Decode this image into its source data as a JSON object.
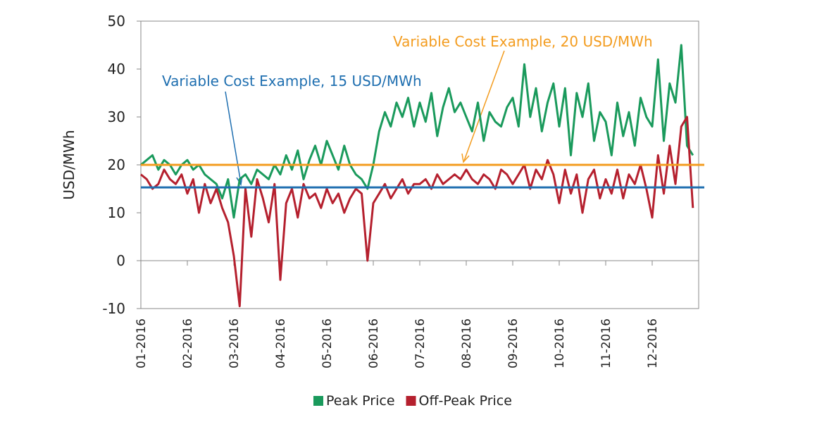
{
  "chart_data": {
    "type": "line",
    "y_label": "USD/MWh",
    "ylim": [
      -10,
      50
    ],
    "yticks": [
      -10,
      0,
      10,
      20,
      30,
      40,
      50
    ],
    "categories": [
      "01-2016",
      null,
      null,
      null,
      null,
      null,
      null,
      null,
      "02-2016",
      null,
      null,
      null,
      null,
      null,
      null,
      null,
      "03-2016",
      null,
      null,
      null,
      null,
      null,
      null,
      null,
      "04-2016",
      null,
      null,
      null,
      null,
      null,
      null,
      null,
      "05-2016",
      null,
      null,
      null,
      null,
      null,
      null,
      null,
      "06-2016",
      null,
      null,
      null,
      null,
      null,
      null,
      null,
      "07-2016",
      null,
      null,
      null,
      null,
      null,
      null,
      null,
      "08-2016",
      null,
      null,
      null,
      null,
      null,
      null,
      null,
      "09-2016",
      null,
      null,
      null,
      null,
      null,
      null,
      null,
      "10-2016",
      null,
      null,
      null,
      null,
      null,
      null,
      null,
      "11-2016",
      null,
      null,
      null,
      null,
      null,
      null,
      null,
      "12-2016",
      null,
      null,
      null,
      null,
      null,
      null,
      null
    ],
    "series": [
      {
        "name": "Peak Price",
        "color": "#1a9a5c",
        "values": [
          20,
          21,
          22,
          19,
          21,
          20,
          18,
          20,
          21,
          19,
          20,
          18,
          17,
          16,
          13,
          17,
          9,
          17,
          18,
          16,
          19,
          18,
          17,
          20,
          18,
          22,
          19,
          23,
          17,
          21,
          24,
          20,
          25,
          22,
          19,
          24,
          20,
          18,
          17,
          15,
          20,
          27,
          31,
          28,
          33,
          30,
          34,
          28,
          33,
          29,
          35,
          26,
          32,
          36,
          31,
          33,
          30,
          27,
          33,
          25,
          31,
          29,
          28,
          32,
          34,
          28,
          41,
          30,
          36,
          27,
          33,
          37,
          28,
          36,
          22,
          35,
          30,
          37,
          25,
          31,
          29,
          22,
          33,
          26,
          31,
          24,
          34,
          30,
          28,
          42,
          25,
          37,
          33,
          45,
          24,
          22
        ]
      },
      {
        "name": "Off-Peak Price",
        "color": "#b5202e",
        "values": [
          18,
          17,
          15,
          16,
          19,
          17,
          16,
          18,
          14,
          17,
          10,
          16,
          12,
          15,
          11,
          8,
          1,
          -9.5,
          15,
          5,
          17,
          13,
          8,
          16,
          -4,
          12,
          15,
          9,
          16,
          13,
          14,
          11,
          15,
          12,
          14,
          10,
          13,
          15,
          14,
          0,
          12,
          14,
          16,
          13,
          15,
          17,
          14,
          16,
          16,
          17,
          15,
          18,
          16,
          17,
          18,
          17,
          19,
          17,
          16,
          18,
          17,
          15,
          19,
          18,
          16,
          18,
          20,
          15,
          19,
          17,
          21,
          18,
          12,
          19,
          14,
          18,
          10,
          17,
          19,
          13,
          17,
          14,
          19,
          13,
          18,
          16,
          20,
          15,
          9,
          22,
          14,
          24,
          16,
          28,
          30,
          11
        ]
      }
    ],
    "reference_lines": [
      {
        "value": 15.3,
        "color": "#1f6fb0",
        "label": "Variable Cost Example, 15 USD/MWh"
      },
      {
        "value": 20,
        "color": "#f39c1f",
        "label": "Variable Cost Example, 20 USD/MWh"
      }
    ],
    "legend": "bottom"
  }
}
